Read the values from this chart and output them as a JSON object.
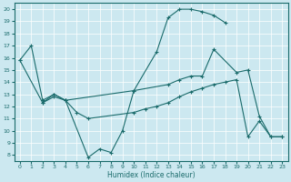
{
  "xlabel": "Humidex (Indice chaleur)",
  "bg_color": "#cce8f0",
  "line_color": "#1a6b6b",
  "xlim": [
    -0.5,
    23.5
  ],
  "ylim": [
    7.5,
    20.5
  ],
  "xticks": [
    0,
    1,
    2,
    3,
    4,
    5,
    6,
    7,
    8,
    9,
    10,
    11,
    12,
    13,
    14,
    15,
    16,
    17,
    18,
    19,
    20,
    21,
    22,
    23
  ],
  "yticks": [
    8,
    9,
    10,
    11,
    12,
    13,
    14,
    15,
    16,
    17,
    18,
    19,
    20
  ],
  "line1_x": [
    0,
    1,
    2,
    3,
    4,
    6,
    7,
    8,
    9,
    10,
    12,
    13,
    14,
    15,
    16,
    17,
    18
  ],
  "line1_y": [
    15.8,
    17.0,
    12.5,
    13.0,
    12.5,
    7.8,
    8.5,
    8.2,
    10.0,
    13.3,
    16.5,
    19.3,
    20.0,
    20.0,
    19.8,
    19.5,
    18.9
  ],
  "line2_x": [
    0,
    2,
    3,
    4,
    10,
    13,
    14,
    15,
    16,
    17,
    19,
    20,
    21,
    22,
    23
  ],
  "line2_y": [
    15.8,
    12.3,
    13.0,
    12.5,
    13.3,
    13.8,
    14.2,
    14.5,
    14.5,
    16.7,
    14.8,
    15.0,
    11.2,
    9.5,
    9.5
  ],
  "line3_x": [
    2,
    3,
    4,
    5,
    6,
    10,
    11,
    12,
    13,
    14,
    15,
    16,
    17,
    18,
    19,
    20,
    21,
    22,
    23
  ],
  "line3_y": [
    12.3,
    12.8,
    12.5,
    11.5,
    11.0,
    11.5,
    11.8,
    12.0,
    12.3,
    12.8,
    13.2,
    13.5,
    13.8,
    14.0,
    14.2,
    9.5,
    10.8,
    9.5,
    9.5
  ]
}
